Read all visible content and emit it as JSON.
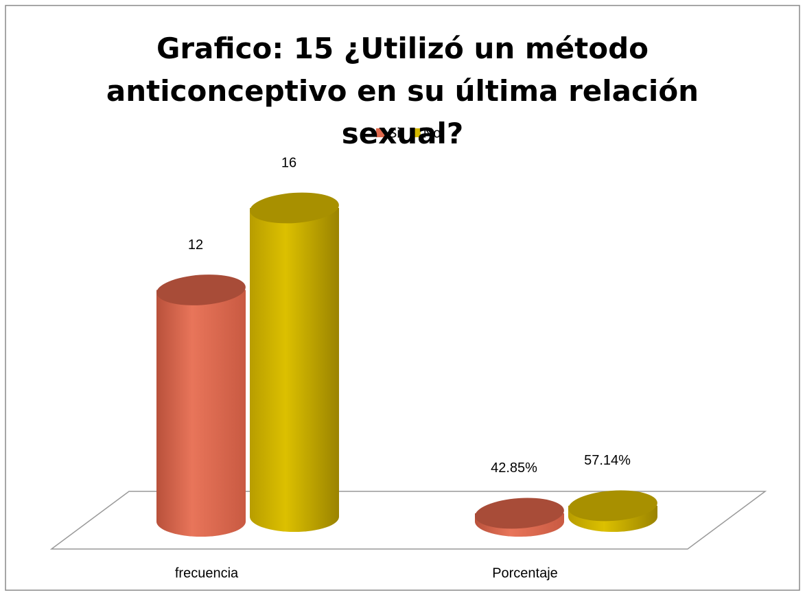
{
  "chart_data": {
    "type": "bar3d",
    "title": "Grafico: 15  ¿Utilizó un método anticonceptivo en su última relación sexual?",
    "categories": [
      "frecuencia",
      "Porcentaje"
    ],
    "series": [
      {
        "name": "Si",
        "color": "#e06a4e",
        "values": [
          12,
          0.4285
        ],
        "value_labels": [
          "12",
          "42.85%"
        ]
      },
      {
        "name": "No",
        "color": "#d4b800",
        "values": [
          16,
          0.5714
        ],
        "value_labels": [
          "16",
          "57.14%"
        ]
      }
    ],
    "legend": "top"
  }
}
